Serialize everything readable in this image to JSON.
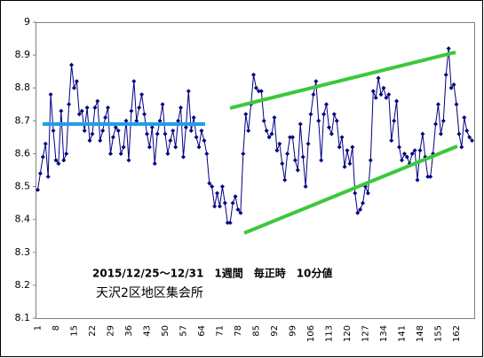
{
  "chart_data": {
    "type": "line",
    "annotations": [
      "2015/12/25～12/31　1週間　毎正時　10分値",
      "天沢2区地区集会所"
    ],
    "color": "#000080",
    "categories": [
      "1",
      null,
      null,
      null,
      null,
      null,
      null,
      "8",
      null,
      null,
      null,
      null,
      null,
      null,
      "15",
      null,
      null,
      null,
      null,
      null,
      null,
      "22",
      null,
      null,
      null,
      null,
      null,
      null,
      "29",
      null,
      null,
      null,
      null,
      null,
      null,
      "36",
      null,
      null,
      null,
      null,
      null,
      null,
      "43",
      null,
      null,
      null,
      null,
      null,
      null,
      "50",
      null,
      null,
      null,
      null,
      null,
      null,
      "57",
      null,
      null,
      null,
      null,
      null,
      null,
      "64",
      null,
      null,
      null,
      null,
      null,
      null,
      "71",
      null,
      null,
      null,
      null,
      null,
      null,
      "78",
      null,
      null,
      null,
      null,
      null,
      null,
      "85",
      null,
      null,
      null,
      null,
      null,
      null,
      "92",
      null,
      null,
      null,
      null,
      null,
      null,
      "99",
      null,
      null,
      null,
      null,
      null,
      null,
      "106",
      null,
      null,
      null,
      null,
      null,
      null,
      "113",
      null,
      null,
      null,
      null,
      null,
      null,
      "120",
      null,
      null,
      null,
      null,
      null,
      null,
      "127",
      null,
      null,
      null,
      null,
      null,
      null,
      "134",
      null,
      null,
      null,
      null,
      null,
      null,
      "141",
      null,
      null,
      null,
      null,
      null,
      null,
      "148",
      null,
      null,
      null,
      null,
      null,
      null,
      "155",
      null,
      null,
      null,
      null,
      null,
      null,
      "162",
      null,
      null,
      null,
      null,
      null,
      null
    ],
    "values": [
      8.49,
      8.54,
      8.59,
      8.63,
      8.53,
      8.78,
      8.67,
      8.58,
      8.57,
      8.73,
      8.58,
      8.6,
      8.75,
      8.87,
      8.8,
      8.82,
      8.72,
      8.73,
      8.67,
      8.74,
      8.64,
      8.66,
      8.74,
      8.76,
      8.64,
      8.67,
      8.71,
      8.74,
      8.6,
      8.65,
      8.68,
      8.67,
      8.6,
      8.62,
      8.7,
      8.58,
      8.73,
      8.82,
      8.7,
      8.74,
      8.78,
      8.72,
      8.66,
      8.62,
      8.68,
      8.57,
      8.66,
      8.7,
      8.75,
      8.66,
      8.6,
      8.64,
      8.67,
      8.62,
      8.7,
      8.74,
      8.59,
      8.68,
      8.79,
      8.67,
      8.71,
      8.65,
      8.62,
      8.67,
      8.64,
      8.6,
      8.51,
      8.5,
      8.44,
      8.48,
      8.44,
      8.5,
      8.45,
      8.39,
      8.39,
      8.45,
      8.47,
      8.43,
      8.42,
      8.6,
      8.72,
      8.67,
      8.75,
      8.84,
      8.8,
      8.79,
      8.79,
      8.7,
      8.67,
      8.65,
      8.66,
      8.71,
      8.61,
      8.63,
      8.57,
      8.52,
      8.6,
      8.65,
      8.65,
      8.58,
      8.55,
      8.69,
      8.59,
      8.5,
      8.63,
      8.72,
      8.78,
      8.82,
      8.7,
      8.58,
      8.72,
      8.75,
      8.68,
      8.66,
      8.72,
      8.7,
      8.62,
      8.65,
      8.56,
      8.61,
      8.57,
      8.62,
      8.48,
      8.42,
      8.43,
      8.45,
      8.5,
      8.48,
      8.58,
      8.79,
      8.77,
      8.83,
      8.78,
      8.8,
      8.77,
      8.78,
      8.64,
      8.7,
      8.76,
      8.62,
      8.58,
      8.6,
      8.59,
      8.57,
      8.6,
      8.61,
      8.52,
      8.61,
      8.66,
      8.59,
      8.53,
      8.53,
      8.6,
      8.69,
      8.75,
      8.66,
      8.7,
      8.84,
      8.92,
      8.8,
      8.81,
      8.75,
      8.66,
      8.62,
      8.71,
      8.67,
      8.65,
      8.64
    ],
    "ylim": [
      8.1,
      9
    ],
    "yticks": [
      8.1,
      8.2,
      8.3,
      8.4,
      8.5,
      8.6,
      8.7,
      8.8,
      8.9,
      9
    ],
    "grid": false
  }
}
